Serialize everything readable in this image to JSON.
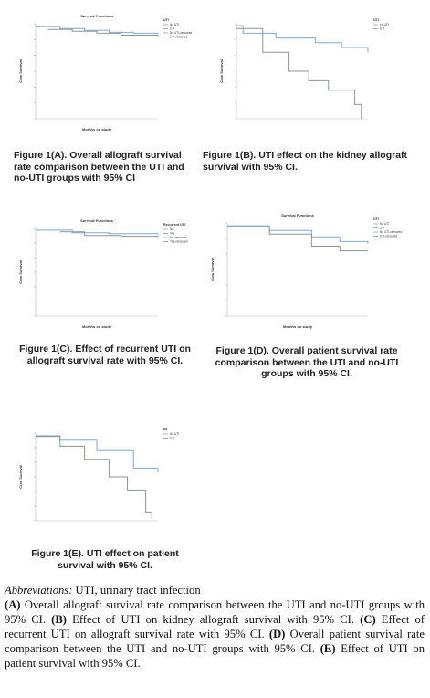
{
  "panels": [
    {
      "title": "Survival Functions",
      "y_label": "Cum Survival",
      "x_label": "Months on study",
      "legend_title": "UTI",
      "legend": [
        "No UTI",
        "UTI",
        "No UTI-censored",
        "UTI-censored"
      ],
      "caption": "Figure 1(A). Overall allograft survival rate comparison between the UTI and no-UTI groups with 95% CI"
    },
    {
      "y_label": "Cum Survival",
      "legend_title": "UTI",
      "legend": [
        "no-UTI",
        "UTI"
      ],
      "caption": "Figure 1(B). UTI effect on the kidney allograft survival with 95% CI."
    },
    {
      "title": "Survival Functions",
      "y_label": "Cum Survival",
      "x_label": "Months on study",
      "legend_title": "Recurrent UTI",
      "legend": [
        "No",
        "Yes",
        "No-censored",
        "Yes-censored"
      ],
      "caption": "Figure 1(C). Effect of recurrent UTI on allograft survival rate with 95% CI."
    },
    {
      "title": "Survival Functions",
      "y_label": "Cum Survival",
      "x_label": "Months on study",
      "legend_title": "UTI",
      "legend": [
        "No UTI",
        "UTI",
        "No UTI-censored",
        "UTI-censored"
      ],
      "caption": "Figure 1(D). Overall patient survival rate comparison between the UTI and no-UTI groups with 95% CI."
    },
    {
      "y_label": "Cum Survival",
      "legend_title": "uti",
      "legend": [
        "No UTI",
        "UTI"
      ],
      "caption": "Figure 1(E). UTI effect on patient survival with 95% CI."
    }
  ],
  "footer": {
    "abbreviations_label": "Abbreviations:",
    "abbreviations_text": " UTI, urinary tract infection",
    "items": [
      {
        "label": "(A)",
        "text": " Overall allograft survival rate comparison between the UTI and no-UTI groups with 95% CI. "
      },
      {
        "label": "(B)",
        "text": " Effect of UTI on kidney allograft survival with 95% CI. "
      },
      {
        "label": "(C)",
        "text": " Effect of recurrent UTI on allograft survival rate with 95% CI. "
      },
      {
        "label": "(D)",
        "text": " Overall patient survival rate comparison between the UTI and no-UTI groups with 95% CI. "
      },
      {
        "label": "(E)",
        "text": " Effect of UTI on patient survival with 95% CI."
      }
    ]
  }
}
